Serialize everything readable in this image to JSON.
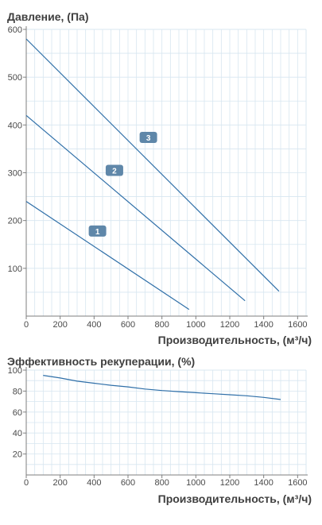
{
  "chart_data": [
    {
      "type": "line",
      "title": "Давление, (Па)",
      "xlabel": "Производительность, (м³/ч)",
      "ylabel": "",
      "xlim": [
        0,
        1650
      ],
      "ylim": [
        0,
        600
      ],
      "xticks": [
        0,
        200,
        400,
        600,
        800,
        1000,
        1200,
        1400,
        1600
      ],
      "yticks": [
        100,
        200,
        300,
        400,
        500,
        600
      ],
      "x_tick_labels": [
        "0",
        "200",
        "400",
        "600",
        "800",
        "1000",
        "1200",
        "1400",
        "1600"
      ],
      "y_tick_labels": [
        "100",
        "200",
        "300",
        "400",
        "500",
        "600"
      ],
      "grid": true,
      "series": [
        {
          "name": "1",
          "color": "#2f6fa8",
          "x": [
            0,
            960
          ],
          "y": [
            240,
            14
          ],
          "label_at": [
            420,
            178
          ]
        },
        {
          "name": "2",
          "color": "#2f6fa8",
          "x": [
            0,
            1290
          ],
          "y": [
            420,
            32
          ],
          "label_at": [
            520,
            305
          ]
        },
        {
          "name": "3",
          "color": "#2f6fa8",
          "x": [
            0,
            1490
          ],
          "y": [
            580,
            52
          ],
          "label_at": [
            720,
            374
          ]
        }
      ],
      "label_badge_color": "#5f87a9"
    },
    {
      "type": "line",
      "title": "Эффективность рекуперации, (%)",
      "xlabel": "Производительность, (м³/ч)",
      "ylabel": "",
      "xlim": [
        0,
        1650
      ],
      "ylim": [
        0,
        100
      ],
      "xticks": [
        0,
        200,
        400,
        600,
        800,
        1000,
        1200,
        1400,
        1600
      ],
      "yticks": [
        20,
        40,
        60,
        80,
        100
      ],
      "x_tick_labels": [
        "0",
        "200",
        "400",
        "600",
        "800",
        "1000",
        "1200",
        "1400",
        "1600"
      ],
      "y_tick_labels": [
        "20",
        "40",
        "60",
        "80",
        "100"
      ],
      "grid": true,
      "series": [
        {
          "color": "#2f6fa8",
          "x": [
            100,
            200,
            300,
            400,
            500,
            600,
            700,
            800,
            900,
            1000,
            1100,
            1200,
            1300,
            1400,
            1500
          ],
          "y": [
            95,
            92.5,
            89.5,
            87.5,
            85.5,
            84,
            82,
            80.5,
            79.5,
            78.5,
            77.5,
            76.5,
            75.5,
            74,
            72
          ]
        }
      ]
    }
  ]
}
